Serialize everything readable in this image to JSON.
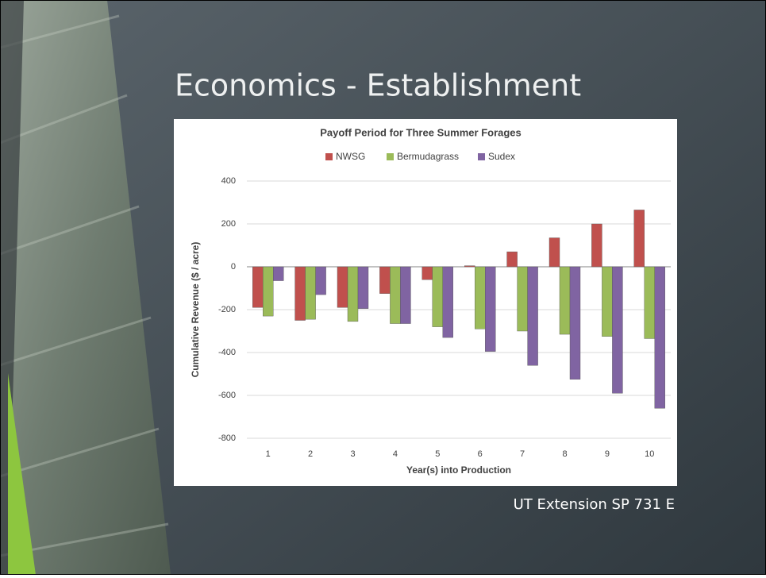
{
  "slide_title": "Economics - Establishment",
  "source": "UT Extension SP 731 E",
  "chart_data": {
    "type": "bar",
    "title": "Payoff Period for Three Summer Forages",
    "x_label": "Year(s) into Production",
    "y_label": "Cumulative Revenue ($ / acre)",
    "categories": [
      "1",
      "2",
      "3",
      "4",
      "5",
      "6",
      "7",
      "8",
      "9",
      "10"
    ],
    "series": [
      {
        "name": "NWSG",
        "color": "#c0504d",
        "values": [
          -190,
          -250,
          -190,
          -125,
          -60,
          5,
          70,
          135,
          200,
          265
        ]
      },
      {
        "name": "Bermudagrass",
        "color": "#9bbb59",
        "values": [
          -230,
          -245,
          -255,
          -265,
          -280,
          -290,
          -300,
          -315,
          -325,
          -335
        ]
      },
      {
        "name": "Sudex",
        "color": "#8064a2",
        "values": [
          -65,
          -130,
          -195,
          -265,
          -330,
          -395,
          -460,
          -525,
          -590,
          -660
        ]
      }
    ],
    "ylim": [
      -800,
      400
    ],
    "yticks": [
      -800,
      -600,
      -400,
      -200,
      0,
      200,
      400
    ],
    "grid": true,
    "legend": "top"
  }
}
